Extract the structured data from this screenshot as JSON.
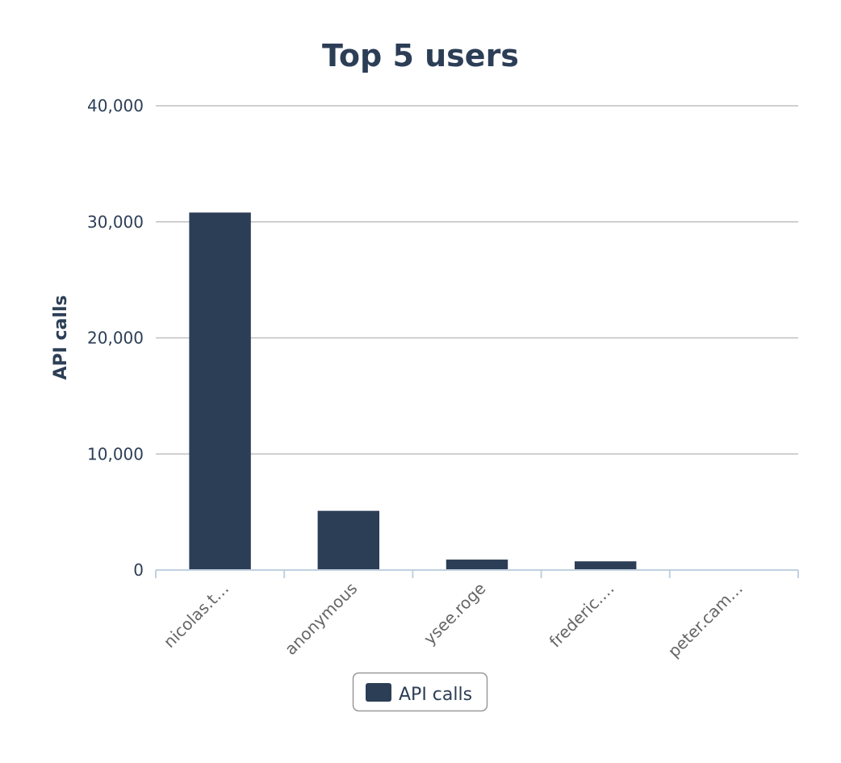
{
  "chart_data": {
    "type": "bar",
    "title": "Top 5 users",
    "xlabel": "",
    "ylabel": "API calls",
    "categories": [
      "nicolas.t…",
      "anonymous",
      "ysee.roge",
      "frederic.…",
      "peter.cam…"
    ],
    "series": [
      {
        "name": "API calls",
        "values": [
          30800,
          5100,
          900,
          750,
          0
        ]
      }
    ],
    "ylim": [
      0,
      40000
    ],
    "yticks": [
      0,
      10000,
      20000,
      30000,
      40000
    ],
    "ytick_labels": [
      "0",
      "10,000",
      "20,000",
      "30,000",
      "40,000"
    ],
    "grid": true,
    "legend_position": "bottom",
    "colors": {
      "bar": "#2c3e56",
      "grid": "#c0c0c0",
      "axis": "#c0d0e0",
      "text": "#2c3e56",
      "xtick": "#666666"
    }
  }
}
